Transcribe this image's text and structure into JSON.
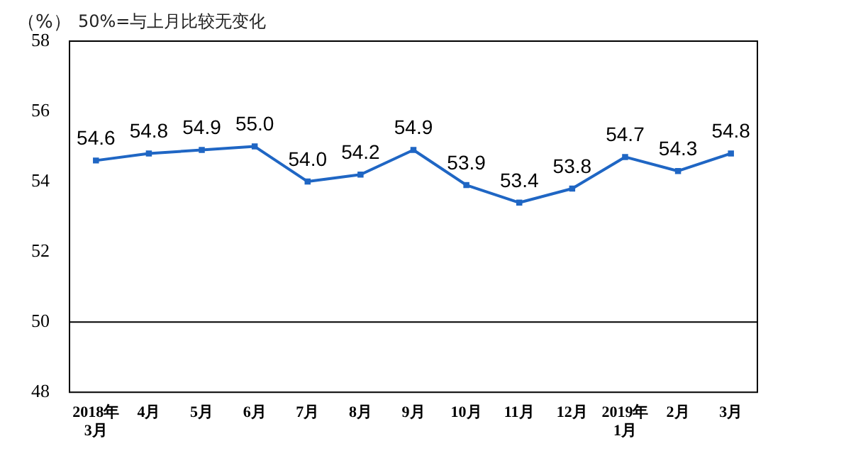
{
  "chart_data": {
    "type": "line",
    "title": "50%=与上月比较无变化",
    "ylabel": "（%）",
    "categories": [
      "2018年\n3月",
      "4月",
      "5月",
      "6月",
      "7月",
      "8月",
      "9月",
      "10月",
      "11月",
      "12月",
      "2019年\n1月",
      "2月",
      "3月"
    ],
    "series": [
      {
        "color": "#1f66c4",
        "values": [
          54.6,
          54.8,
          54.9,
          55.0,
          54.0,
          54.2,
          54.9,
          53.9,
          53.4,
          53.8,
          54.7,
          54.3,
          54.8
        ],
        "value_labels": [
          "54.6",
          "54.8",
          "54.9",
          "55.0",
          "54.0",
          "54.2",
          "54.9",
          "53.9",
          "53.4",
          "53.8",
          "54.7",
          "54.3",
          "54.8"
        ]
      }
    ],
    "ylim": [
      48,
      58
    ],
    "yticks": [
      48,
      50,
      52,
      54,
      56,
      58
    ],
    "grid": false,
    "legend": false,
    "marker": "square",
    "line_style": "solid",
    "ref_lines": [
      {
        "axis": "y",
        "value": 50,
        "color": "#000000"
      }
    ]
  }
}
